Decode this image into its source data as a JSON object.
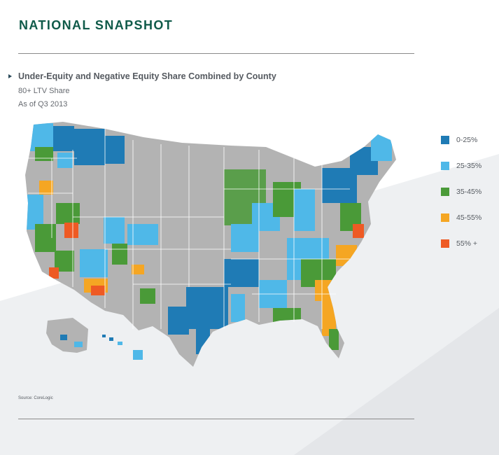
{
  "page": {
    "title": "NATIONAL SNAPSHOT"
  },
  "map": {
    "title": "Under-Equity and Negative Equity Share Combined by County",
    "subtitle_line1": "80+ LTV Share",
    "subtitle_line2": "As of Q3 2013",
    "source": "Source: CoreLogic",
    "base_color": "#b3b3b3",
    "state_border_color": "#ffffff",
    "legend": [
      {
        "label": "0-25%",
        "color": "#1f7bb5"
      },
      {
        "label": "25-35%",
        "color": "#4fb8e8"
      },
      {
        "label": "35-45%",
        "color": "#4a9a38"
      },
      {
        "label": "45-55%",
        "color": "#f5a623"
      },
      {
        "label": "55% +",
        "color": "#ee5a24"
      }
    ]
  },
  "style": {
    "title_color": "#0f5a49",
    "text_color": "#555a60",
    "background_light": "#ffffff",
    "background_shade": "#eef0f2"
  }
}
